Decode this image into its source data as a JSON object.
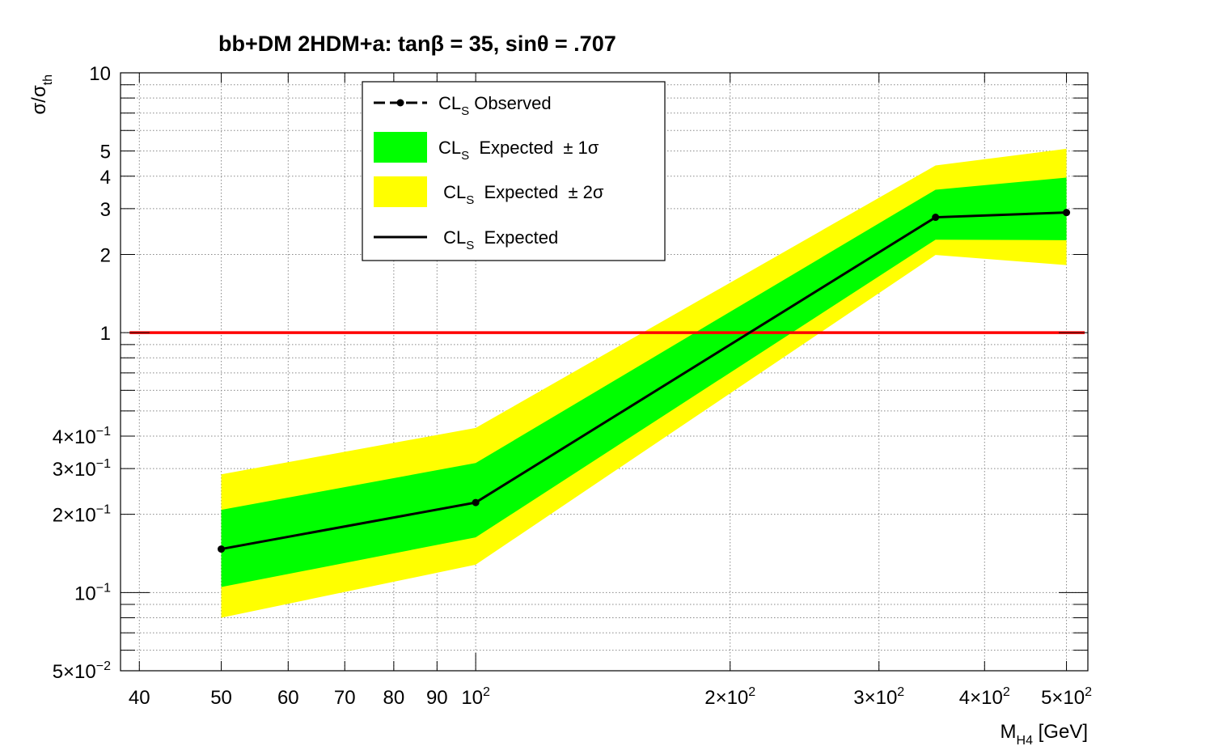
{
  "chart_data": {
    "type": "line",
    "title": "bb+DM 2HDM+a: tanβ = 35, sinθ = .707",
    "xlabel": "M",
    "xlabel_sub": "H4",
    "xlabel_unit": " [GeV]",
    "ylabel": "σ/σ",
    "ylabel_sub": "th",
    "x_scale": "log",
    "y_scale": "log",
    "xlim": [
      38,
      530
    ],
    "ylim": [
      0.05,
      10
    ],
    "grid": true,
    "x_ticks": [
      {
        "value": 40,
        "label": "40"
      },
      {
        "value": 50,
        "label": "50"
      },
      {
        "value": 60,
        "label": "60"
      },
      {
        "value": 70,
        "label": "70"
      },
      {
        "value": 80,
        "label": "80"
      },
      {
        "value": 90,
        "label": "90"
      },
      {
        "value": 100,
        "label": "10",
        "sup": "2"
      },
      {
        "value": 200,
        "label": "2×10",
        "sup": "2"
      },
      {
        "value": 300,
        "label": "3×10",
        "sup": "2"
      },
      {
        "value": 400,
        "label": "4×10",
        "sup": "2"
      },
      {
        "value": 500,
        "label": "5×10",
        "sup": "2"
      }
    ],
    "y_ticks": [
      {
        "value": 10,
        "label": "10"
      },
      {
        "value": 5,
        "label": "5"
      },
      {
        "value": 4,
        "label": "4"
      },
      {
        "value": 3,
        "label": "3"
      },
      {
        "value": 2,
        "label": "2"
      },
      {
        "value": 1,
        "label": "1"
      },
      {
        "value": 0.4,
        "label": "4×10",
        "sup": "−1"
      },
      {
        "value": 0.3,
        "label": "3×10",
        "sup": "−1"
      },
      {
        "value": 0.2,
        "label": "2×10",
        "sup": "−1"
      },
      {
        "value": 0.1,
        "label": "10",
        "sup": "−1"
      },
      {
        "value": 0.05,
        "label": "5×10",
        "sup": "−2"
      }
    ],
    "x": [
      50,
      100,
      350,
      500
    ],
    "series": [
      {
        "name": "CLS Observed",
        "values": [
          0.147,
          0.222,
          2.78,
          2.9
        ],
        "color": "#000000",
        "style": "dashed-markers"
      },
      {
        "name": "CLS Expected",
        "values": [
          0.147,
          0.222,
          2.78,
          2.9
        ],
        "color": "#000000",
        "style": "solid"
      },
      {
        "name": "CLS Expected ± 1σ",
        "low": [
          0.105,
          0.163,
          2.28,
          2.27
        ],
        "high": [
          0.208,
          0.315,
          3.55,
          3.95
        ],
        "color": "#00ff00",
        "style": "band"
      },
      {
        "name": "CLS Expected ± 2σ",
        "low": [
          0.08,
          0.128,
          1.99,
          1.82
        ],
        "high": [
          0.285,
          0.43,
          4.4,
          5.1
        ],
        "color": "#ffff00",
        "style": "band"
      }
    ],
    "reference_line": {
      "y": 1,
      "color": "#ff0000"
    },
    "legend": {
      "placement": "top-center",
      "entries": [
        {
          "pre": "CL",
          "sub": "S",
          "post": " Observed",
          "kind": "observed"
        },
        {
          "pre": "CL",
          "sub": "S",
          "post": "  Expected  ± 1σ",
          "kind": "band1"
        },
        {
          "pre": " CL",
          "sub": "S",
          "post": "  Expected  ± 2σ",
          "kind": "band2"
        },
        {
          "pre": " CL",
          "sub": "S",
          "post": "  Expected",
          "kind": "expected"
        }
      ]
    }
  }
}
